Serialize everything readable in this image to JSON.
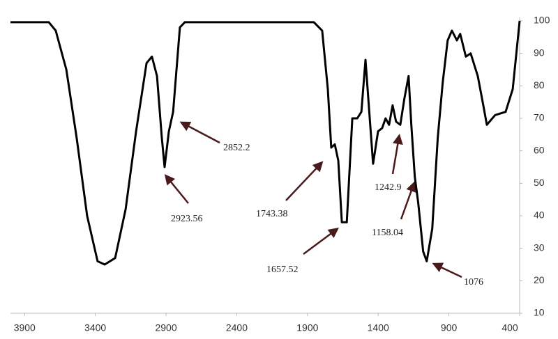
{
  "chart_data": {
    "type": "line",
    "x": [
      4000,
      3729,
      3680,
      3605,
      3532,
      3458,
      3384,
      3334,
      3260,
      3186,
      3112,
      3038,
      3000,
      2964,
      2930,
      2910,
      2880,
      2850,
      2802,
      2767,
      1855,
      1796,
      1756,
      1732,
      1707,
      1682,
      1657,
      1622,
      1583,
      1548,
      1519,
      1490,
      1460,
      1436,
      1401,
      1372,
      1348,
      1323,
      1298,
      1274,
      1244,
      1215,
      1185,
      1166,
      1141,
      1117,
      1082,
      1057,
      1018,
      979,
      944,
      909,
      879,
      844,
      820,
      780,
      746,
      696,
      657,
      632,
      573,
      499,
      449,
      400
    ],
    "series": [
      {
        "color": "#000000",
        "values": [
          99.6,
          99.6,
          97,
          85,
          64,
          40,
          26,
          25,
          27,
          42,
          66,
          87,
          89,
          83,
          64,
          55,
          66,
          72,
          98,
          99.6,
          99.6,
          97,
          79,
          61,
          62,
          57,
          38,
          38,
          70,
          70,
          72,
          88,
          70,
          56,
          66,
          67,
          70,
          68,
          74,
          69,
          68,
          76,
          83,
          68,
          52,
          44,
          29,
          26,
          36,
          64,
          81,
          94,
          97,
          94,
          96,
          89,
          90,
          83,
          74,
          68,
          71,
          72,
          79,
          100
        ]
      }
    ],
    "xlim": [
      4000,
      400
    ],
    "ylim": [
      10,
      100
    ],
    "xticks": [
      3900,
      3400,
      2900,
      2400,
      1900,
      1400,
      900,
      400
    ],
    "yticks": [
      10,
      20,
      30,
      40,
      50,
      60,
      70,
      80,
      90,
      100
    ],
    "annotations": [
      "2852.2",
      "2923.56",
      "1743.38",
      "1657.52",
      "1242.9",
      "1158.04",
      "1076"
    ]
  }
}
